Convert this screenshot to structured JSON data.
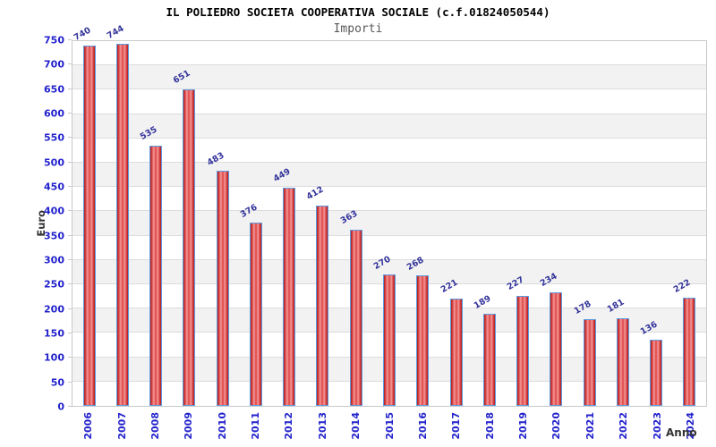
{
  "header": {
    "title": "IL POLIEDRO SOCIETA COOPERATIVA SOCIALE (c.f.01824050544)",
    "subtitle": "Importi"
  },
  "chart_data": {
    "type": "bar",
    "title": "IL POLIEDRO SOCIETA COOPERATIVA SOCIALE (c.f.01824050544)",
    "subtitle": "Importi",
    "xlabel": "Anno",
    "ylabel": "Euro",
    "categories": [
      "2006",
      "2007",
      "2008",
      "2009",
      "2010",
      "2011",
      "2012",
      "2013",
      "2014",
      "2015",
      "2016",
      "2017",
      "2018",
      "2019",
      "2020",
      "2021",
      "2022",
      "2023",
      "2024"
    ],
    "values": [
      740,
      744,
      535,
      651,
      483,
      376,
      449,
      412,
      363,
      270,
      268,
      221,
      189,
      227,
      234,
      178,
      181,
      136,
      222
    ],
    "ylim": [
      0,
      750
    ],
    "ytick_step": 50,
    "grid": true,
    "legend": false,
    "band_fill_alternating": true,
    "colors": {
      "bar_edge": "#5e9be0",
      "bar_dark": "#a82222",
      "bar_mid": "#de4343",
      "bar_highlight": "#f49a9a",
      "axis_tick_label": "#2222cc",
      "value_label": "#32329b",
      "band_gray": "#f2f2f2",
      "band_white": "#ffffff",
      "gridline": "#dcdcdc",
      "plot_border": "#c9c9c9",
      "title": "#000000",
      "subtitle": "#595959",
      "axis_title": "#333333"
    }
  }
}
